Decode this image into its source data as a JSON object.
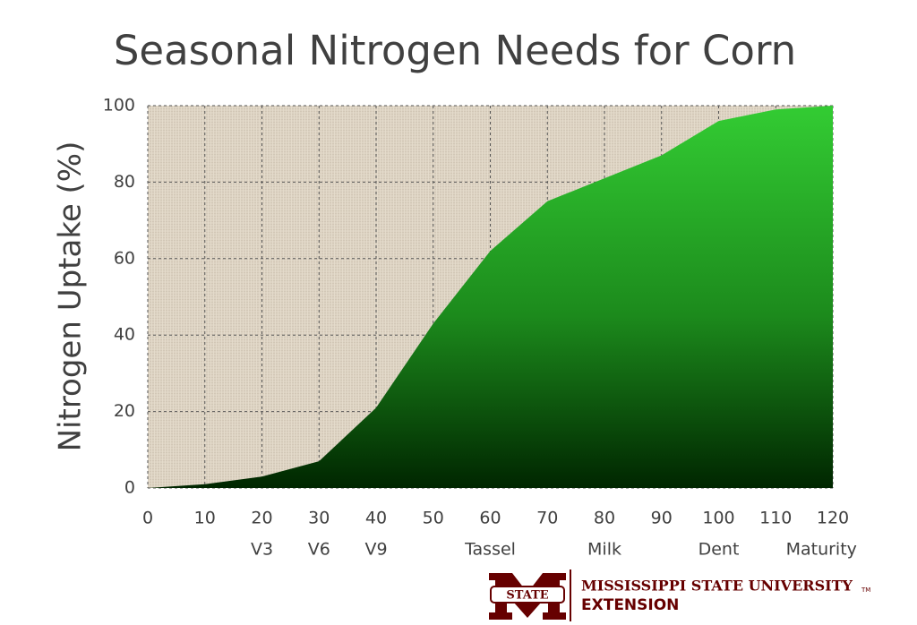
{
  "chart_data": {
    "type": "area",
    "title": "Seasonal Nitrogen Needs for Corn",
    "ylabel": "Nitrogen Uptake (%)",
    "x": [
      0,
      10,
      20,
      30,
      40,
      50,
      60,
      70,
      80,
      90,
      100,
      110,
      120
    ],
    "series": [
      {
        "color": "#33cc33",
        "values": [
          0,
          1,
          3,
          7,
          21,
          43,
          62,
          75,
          81,
          87,
          96,
          99,
          100
        ]
      }
    ],
    "xlim": [
      0,
      120
    ],
    "xticks": [
      0,
      10,
      20,
      30,
      40,
      50,
      60,
      70,
      80,
      90,
      100,
      110,
      120
    ],
    "ylim": [
      0,
      100
    ],
    "yticks": [
      0,
      20,
      40,
      60,
      80,
      100
    ],
    "grid": true,
    "stages": [
      {
        "x": 20,
        "label": "V3"
      },
      {
        "x": 30,
        "label": "V6"
      },
      {
        "x": 40,
        "label": "V9"
      },
      {
        "x": 60,
        "label": "Tassel"
      },
      {
        "x": 80,
        "label": "Milk"
      },
      {
        "x": 100,
        "label": "Dent"
      },
      {
        "x": 118,
        "label": "Maturity"
      }
    ]
  },
  "footer": {
    "logo_word": "STATE",
    "org": "MISSISSIPPI STATE UNIVERSITY",
    "trademark": "TM",
    "unit": "EXTENSION"
  }
}
